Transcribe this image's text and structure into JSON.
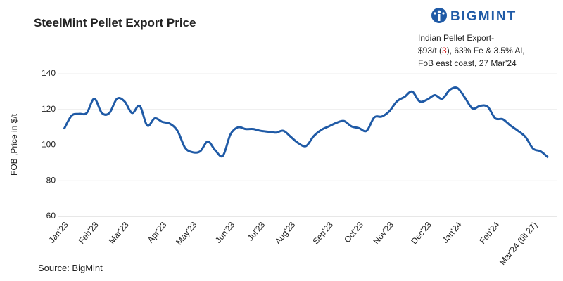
{
  "chart_data": {
    "type": "line",
    "title": "SteelMint Pellet Export Price",
    "brand": "BIGMINT",
    "annotation": {
      "line1": "Indian Pellet Export-",
      "line2_parts": [
        "$93/t (",
        "3",
        "), 63% Fe & 3.5% Al,"
      ],
      "line3": "FoB east coast, 27 Mar'24"
    },
    "ylabel": "FOB ,Price in $/t",
    "source": "Source: BigMint",
    "categories": [
      "Jan'23",
      null,
      null,
      null,
      "Feb'23",
      null,
      null,
      null,
      "Mar'23",
      null,
      null,
      null,
      null,
      "Apr'23",
      null,
      null,
      null,
      "May'23",
      null,
      null,
      null,
      null,
      "Jun'23",
      null,
      null,
      null,
      "Jul'23",
      null,
      null,
      null,
      "Aug'23",
      null,
      null,
      null,
      null,
      "Sep'23",
      null,
      null,
      null,
      "Oct'23",
      null,
      null,
      null,
      "Nov'23",
      null,
      null,
      null,
      null,
      "Dec'23",
      null,
      null,
      null,
      "Jan'24",
      null,
      null,
      null,
      null,
      "Feb'24",
      null,
      null,
      null,
      null,
      "Mar'24 (till 27)",
      null,
      null
    ],
    "series": [
      {
        "name": "Indian Pellet Export",
        "color": "#1f5aa6",
        "values": [
          109,
          116.5,
          117.5,
          118,
          126,
          118,
          118,
          126,
          124.5,
          118,
          122,
          111,
          115,
          113,
          112,
          108,
          98.5,
          96,
          96.5,
          102,
          97,
          94,
          106,
          110,
          109,
          109,
          108,
          107.5,
          107,
          108,
          104.5,
          101,
          99.5,
          105,
          108.5,
          110.5,
          112.5,
          113.5,
          110.5,
          109.5,
          108,
          115.5,
          116,
          119,
          124.5,
          127,
          130,
          124.5,
          125.5,
          128,
          126,
          131,
          132,
          126.5,
          120.5,
          122,
          121.5,
          115,
          114.5,
          111,
          108,
          104.5,
          98,
          96.5,
          93
        ]
      }
    ],
    "ylim": [
      60,
      140
    ],
    "yticks": [
      60,
      80,
      100,
      120,
      140
    ],
    "grid": true
  }
}
